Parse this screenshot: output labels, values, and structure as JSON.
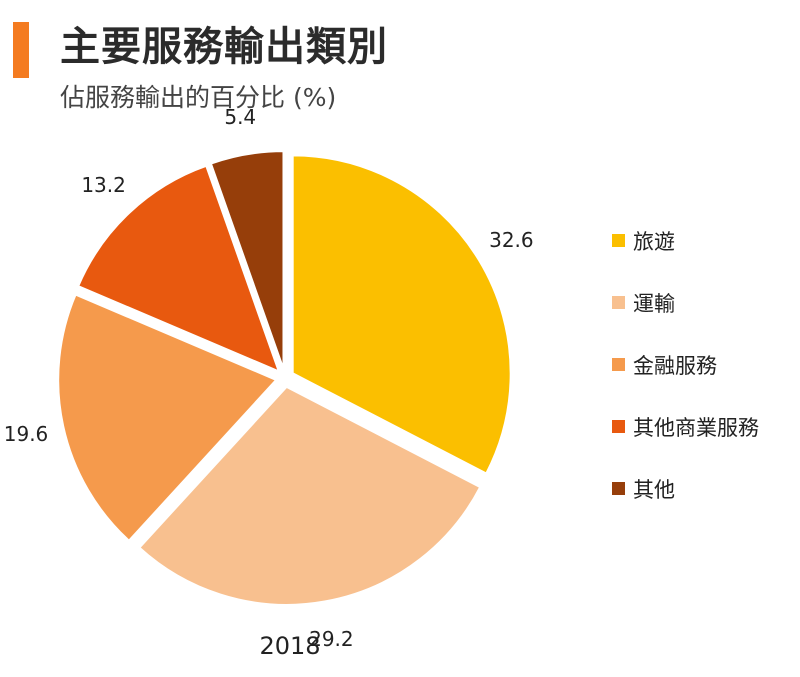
{
  "header": {
    "title": "主要服務輸出類別",
    "subtitle": "佔服務輸出的百分比 (%)"
  },
  "chart_data": {
    "type": "pie",
    "title": "主要服務輸出類別",
    "subtitle": "佔服務輸出的百分比 (%)",
    "xlabel": "2018",
    "categories": [
      "旅遊",
      "運輸",
      "金融服務",
      "其他商業服務",
      "其他"
    ],
    "values": [
      32.6,
      29.2,
      19.6,
      13.2,
      5.4
    ],
    "labels": [
      "32.6",
      "29.2",
      "19.6",
      "13.2",
      "5.4"
    ],
    "colors": [
      "#fbbf00",
      "#f8c08f",
      "#f59a4c",
      "#e8590f",
      "#963e0a"
    ],
    "legend_position": "right",
    "exploded": true
  }
}
